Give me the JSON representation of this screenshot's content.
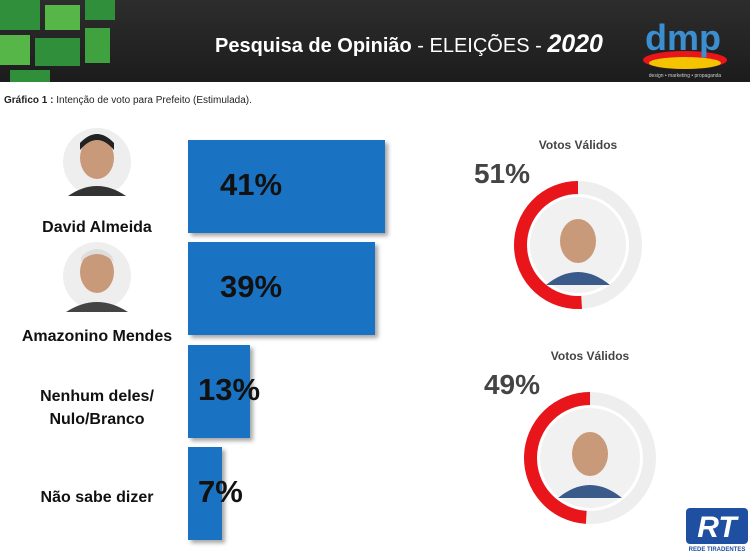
{
  "header": {
    "title": "Pesquisa de Opinião",
    "election": "- ELEIÇÕES -",
    "year": "2020",
    "logo": "dmp",
    "logo_tagline": "design • marketing • propaganda"
  },
  "subtitle_label": "Gráfico 1 :",
  "subtitle": "Intenção de voto para Prefeito  (Estimulada).",
  "chart_data": [
    {
      "type": "hbar",
      "categories": [
        "David Almeida",
        "Amazonino Mendes",
        "Nenhum deles/ Nulo/Branco",
        "Não sabe dizer"
      ],
      "values": [
        41,
        39,
        13,
        7
      ],
      "value_labels": [
        "41%",
        "39%",
        "13%",
        "7%"
      ],
      "color": "#1a73c2"
    },
    {
      "type": "donut",
      "title": "Votos Válidos",
      "values": [
        51
      ],
      "value_labels": [
        "51%"
      ],
      "color": "#e8151b"
    },
    {
      "type": "donut",
      "title": "Votos Válidos",
      "values": [
        49
      ],
      "value_labels": [
        "49%"
      ],
      "color": "#e8151b"
    }
  ],
  "footer": {
    "logo": "RT",
    "name": "REDE TIRADENTES"
  }
}
